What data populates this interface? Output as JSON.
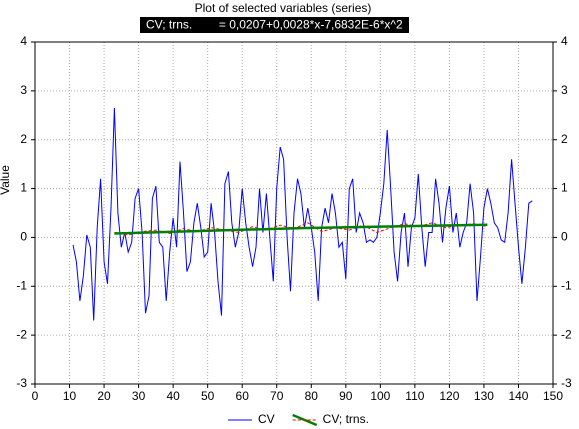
{
  "chart_data": {
    "type": "line",
    "title": "Plot of selected variables (series)",
    "subtitle": "CV; trns.        = 0,0207+0,0028*x-7,6832E-6*x^2",
    "y_label": "Value",
    "xlim": [
      0,
      150
    ],
    "xticks": [
      0,
      10,
      20,
      30,
      40,
      50,
      60,
      70,
      80,
      90,
      100,
      110,
      120,
      130,
      140,
      150
    ],
    "ylim": [
      -3,
      4
    ],
    "yticks": [
      -3,
      -2,
      -1,
      0,
      1,
      2,
      3,
      4
    ],
    "grid": true,
    "legend": "bottom",
    "series": [
      {
        "name": "CV",
        "color": "#0000ff",
        "x": [
          11,
          12,
          13,
          14,
          15,
          16,
          17,
          18,
          19,
          20,
          21,
          22,
          23,
          24,
          25,
          26,
          27,
          28,
          29,
          30,
          31,
          32,
          33,
          34,
          35,
          36,
          37,
          38,
          39,
          40,
          41,
          42,
          43,
          44,
          45,
          46,
          47,
          48,
          49,
          50,
          51,
          52,
          53,
          54,
          55,
          56,
          57,
          58,
          59,
          60,
          61,
          62,
          63,
          64,
          65,
          66,
          67,
          68,
          69,
          70,
          71,
          72,
          73,
          74,
          75,
          76,
          77,
          78,
          79,
          80,
          81,
          82,
          83,
          84,
          85,
          86,
          87,
          88,
          89,
          90,
          91,
          92,
          93,
          94,
          95,
          96,
          97,
          98,
          99,
          100,
          101,
          102,
          103,
          104,
          105,
          106,
          107,
          108,
          109,
          110,
          111,
          112,
          113,
          114,
          115,
          116,
          117,
          118,
          119,
          120,
          121,
          122,
          123,
          124,
          125,
          126,
          127,
          128,
          129,
          130,
          131,
          132,
          133,
          134,
          135,
          136,
          137,
          138,
          139,
          140,
          141,
          142,
          143,
          144
        ],
        "values": [
          -0.15,
          -0.5,
          -1.3,
          -0.8,
          0.05,
          -0.2,
          -1.7,
          0.2,
          1.2,
          -0.5,
          -0.95,
          0.6,
          2.65,
          0.5,
          -0.2,
          0.1,
          -0.3,
          -0.1,
          0.8,
          1.0,
          0.1,
          -1.55,
          -1.2,
          0.8,
          1.05,
          -0.1,
          -0.2,
          -1.3,
          -0.3,
          0.4,
          -0.2,
          1.55,
          0.5,
          -0.7,
          -0.5,
          0.3,
          0.7,
          0.2,
          -0.4,
          -0.3,
          0.7,
          0.1,
          -0.9,
          -1.6,
          1.1,
          1.35,
          0.3,
          -0.2,
          0.1,
          1.0,
          0.3,
          -0.2,
          -0.6,
          -0.2,
          1.0,
          0.1,
          0.9,
          0.0,
          -0.9,
          1.0,
          1.85,
          1.6,
          0.0,
          -1.1,
          0.5,
          1.2,
          0.9,
          0.2,
          0.6,
          0.2,
          -0.3,
          -1.3,
          0.2,
          0.6,
          0.3,
          0.9,
          0.5,
          -0.2,
          -0.1,
          -0.85,
          1.0,
          1.2,
          0.1,
          0.5,
          0.3,
          -0.1,
          -0.05,
          -0.1,
          0.0,
          0.5,
          1.1,
          2.2,
          1.0,
          -0.3,
          -0.9,
          0.1,
          0.5,
          -0.6,
          0.2,
          0.4,
          1.3,
          0.2,
          -0.6,
          0.1,
          0.1,
          1.2,
          0.7,
          -0.1,
          0.6,
          1.05,
          0.1,
          0.5,
          -0.2,
          0.1,
          0.3,
          1.1,
          0.5,
          -1.3,
          -0.4,
          0.6,
          1.0,
          0.7,
          0.3,
          0.2,
          -0.05,
          -0.1,
          0.5,
          1.6,
          0.7,
          -0.2,
          -0.95,
          -0.2,
          0.7,
          0.75
        ]
      },
      {
        "name": "CV; trns.",
        "color": "#ff0000",
        "x": [
          23,
          27,
          31,
          35,
          39,
          43,
          47,
          51,
          55,
          59,
          63,
          67,
          71,
          75,
          79,
          83,
          87,
          91,
          95,
          99,
          103,
          107,
          111,
          115,
          119,
          123,
          127,
          131
        ],
        "values": [
          0.1,
          0.05,
          0.12,
          0.15,
          0.08,
          0.18,
          0.12,
          0.2,
          0.15,
          0.1,
          0.22,
          0.15,
          0.25,
          0.18,
          0.3,
          0.12,
          0.2,
          0.15,
          0.25,
          0.1,
          0.2,
          0.28,
          0.22,
          0.3,
          0.2,
          0.25,
          0.28,
          0.22
        ],
        "trend": {
          "color": "#008000",
          "x": [
            23,
            77,
            131
          ],
          "values": [
            0.08,
            0.19,
            0.26
          ]
        }
      }
    ]
  }
}
